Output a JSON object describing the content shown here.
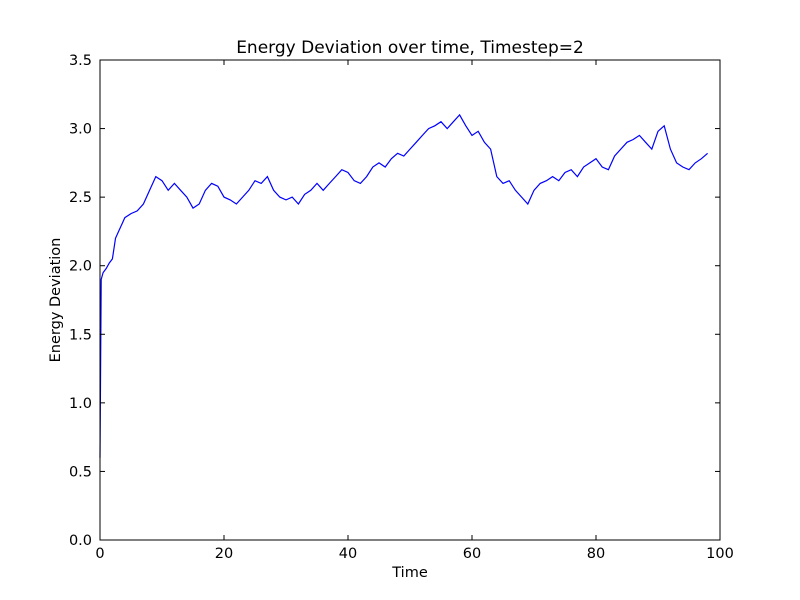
{
  "chart_data": {
    "type": "line",
    "title": "Energy Deviation over time, Timestep=2",
    "xlabel": "Time",
    "ylabel": "Energy Deviation",
    "xlim": [
      0,
      100
    ],
    "ylim": [
      0.0,
      3.5
    ],
    "xticks": [
      "0",
      "20",
      "40",
      "60",
      "80",
      "100"
    ],
    "yticks": [
      "0.0",
      "0.5",
      "1.0",
      "1.5",
      "2.0",
      "2.5",
      "3.0",
      "3.5"
    ],
    "grid": false,
    "line_color": "#0000ff",
    "series": [
      {
        "x": [
          0,
          0.2,
          0.5,
          1,
          1.5,
          2,
          2.5,
          3,
          3.5,
          4,
          5,
          6,
          7,
          8,
          9,
          10,
          11,
          12,
          13,
          14,
          15,
          16,
          17,
          18,
          19,
          20,
          21,
          22,
          23,
          24,
          25,
          26,
          27,
          28,
          29,
          30,
          31,
          32,
          33,
          34,
          35,
          36,
          37,
          38,
          39,
          40,
          41,
          42,
          43,
          44,
          45,
          46,
          47,
          48,
          49,
          50,
          51,
          52,
          53,
          54,
          55,
          56,
          57,
          58,
          59,
          60,
          61,
          62,
          63,
          64,
          65,
          66,
          67,
          68,
          69,
          70,
          71,
          72,
          73,
          74,
          75,
          76,
          77,
          78,
          79,
          80,
          81,
          82,
          83,
          84,
          85,
          86,
          87,
          88,
          89,
          90,
          91,
          92,
          93,
          94,
          95,
          96,
          97,
          98
        ],
        "y": [
          0.6,
          1.9,
          1.95,
          1.98,
          2.02,
          2.05,
          2.2,
          2.25,
          2.3,
          2.35,
          2.38,
          2.4,
          2.45,
          2.55,
          2.65,
          2.62,
          2.55,
          2.6,
          2.55,
          2.5,
          2.42,
          2.45,
          2.55,
          2.6,
          2.58,
          2.5,
          2.48,
          2.45,
          2.5,
          2.55,
          2.62,
          2.6,
          2.65,
          2.55,
          2.5,
          2.48,
          2.5,
          2.45,
          2.52,
          2.55,
          2.6,
          2.55,
          2.6,
          2.65,
          2.7,
          2.68,
          2.62,
          2.6,
          2.65,
          2.72,
          2.75,
          2.72,
          2.78,
          2.82,
          2.8,
          2.85,
          2.9,
          2.95,
          3.0,
          3.02,
          3.05,
          3.0,
          3.05,
          3.1,
          3.02,
          2.95,
          2.98,
          2.9,
          2.85,
          2.65,
          2.6,
          2.62,
          2.55,
          2.5,
          2.45,
          2.55,
          2.6,
          2.62,
          2.65,
          2.62,
          2.68,
          2.7,
          2.65,
          2.72,
          2.75,
          2.78,
          2.72,
          2.7,
          2.8,
          2.85,
          2.9,
          2.92,
          2.95,
          2.9,
          2.85,
          2.98,
          3.02,
          2.85,
          2.75,
          2.72,
          2.7,
          2.75,
          2.78,
          2.82
        ]
      }
    ]
  }
}
